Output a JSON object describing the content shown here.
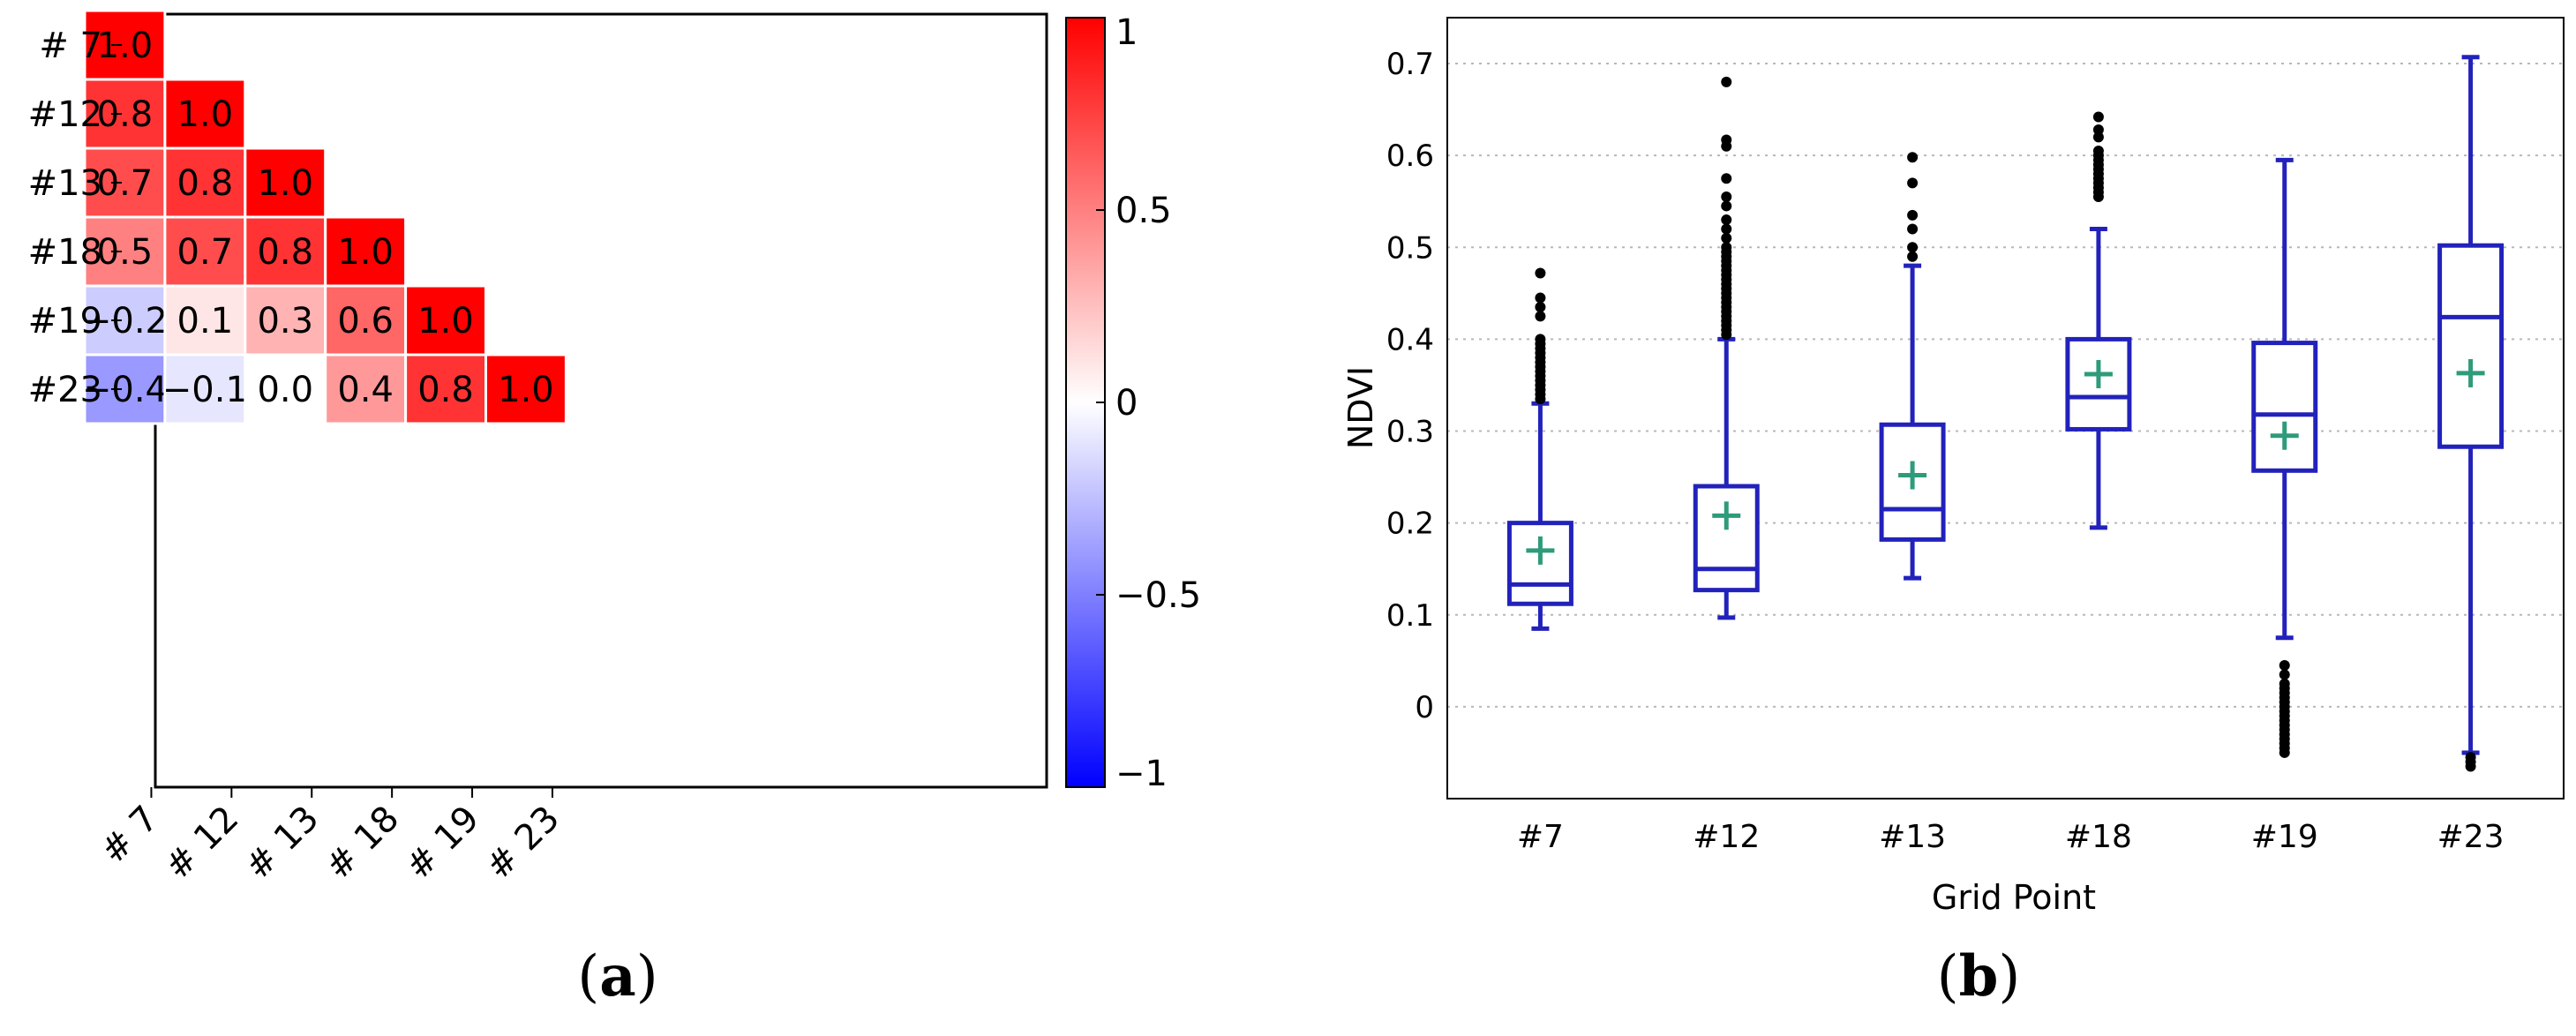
{
  "chart_data": [
    {
      "type": "heatmap",
      "panel_label": "a",
      "panel_label_open": "(",
      "panel_label_close": ")",
      "row_labels": [
        "# 7",
        "#12",
        "#13",
        "#18",
        "#19",
        "#23"
      ],
      "col_labels": [
        "# 7",
        "# 12",
        "# 13",
        "# 18",
        "# 19",
        "# 23"
      ],
      "cells": [
        {
          "r": 0,
          "c": 0,
          "v": 1.0,
          "text": "1.0"
        },
        {
          "r": 1,
          "c": 0,
          "v": 0.8,
          "text": "0.8"
        },
        {
          "r": 1,
          "c": 1,
          "v": 1.0,
          "text": "1.0"
        },
        {
          "r": 2,
          "c": 0,
          "v": 0.7,
          "text": "0.7"
        },
        {
          "r": 2,
          "c": 1,
          "v": 0.8,
          "text": "0.8"
        },
        {
          "r": 2,
          "c": 2,
          "v": 1.0,
          "text": "1.0"
        },
        {
          "r": 3,
          "c": 0,
          "v": 0.5,
          "text": "0.5"
        },
        {
          "r": 3,
          "c": 1,
          "v": 0.7,
          "text": "0.7"
        },
        {
          "r": 3,
          "c": 2,
          "v": 0.8,
          "text": "0.8"
        },
        {
          "r": 3,
          "c": 3,
          "v": 1.0,
          "text": "1.0"
        },
        {
          "r": 4,
          "c": 0,
          "v": -0.2,
          "text": "−0.2"
        },
        {
          "r": 4,
          "c": 1,
          "v": 0.1,
          "text": "0.1"
        },
        {
          "r": 4,
          "c": 2,
          "v": 0.3,
          "text": "0.3"
        },
        {
          "r": 4,
          "c": 3,
          "v": 0.6,
          "text": "0.6"
        },
        {
          "r": 4,
          "c": 4,
          "v": 1.0,
          "text": "1.0"
        },
        {
          "r": 5,
          "c": 0,
          "v": -0.4,
          "text": "−0.4"
        },
        {
          "r": 5,
          "c": 1,
          "v": -0.1,
          "text": "−0.1"
        },
        {
          "r": 5,
          "c": 2,
          "v": 0.0,
          "text": "0.0"
        },
        {
          "r": 5,
          "c": 3,
          "v": 0.4,
          "text": "0.4"
        },
        {
          "r": 5,
          "c": 4,
          "v": 0.8,
          "text": "0.8"
        },
        {
          "r": 5,
          "c": 5,
          "v": 1.0,
          "text": "1.0"
        }
      ],
      "colorbar": {
        "range": [
          -1,
          1
        ],
        "ticks": [
          1,
          0.5,
          0,
          -0.5,
          -1
        ],
        "tick_labels": [
          "1",
          "0.5",
          "0",
          "−0.5",
          "−1"
        ],
        "colors": {
          "positive": "#ff0000",
          "neutral": "#ffffff",
          "negative": "#0000ff"
        }
      }
    },
    {
      "type": "box",
      "panel_label": "b",
      "panel_label_open": "(",
      "panel_label_close": ")",
      "xlabel": "Grid Point",
      "ylabel": "NDVI",
      "ylim": [
        -0.1,
        0.75
      ],
      "y_ticks": [
        0,
        0.1,
        0.2,
        0.3,
        0.4,
        0.5,
        0.6,
        0.7
      ],
      "y_tick_labels": [
        "0",
        "0.1",
        "0.2",
        "0.3",
        "0.4",
        "0.5",
        "0.6",
        "0.7"
      ],
      "grid": true,
      "colors": {
        "box": "#2222bb",
        "mean_marker": "#2e9b7a",
        "outlier": "#000000"
      },
      "categories": [
        "#7",
        "#12",
        "#13",
        "#18",
        "#19",
        "#23"
      ],
      "boxes": [
        {
          "name": "#7",
          "whisker_low": 0.085,
          "q1": 0.112,
          "median": 0.133,
          "q3": 0.2,
          "whisker_high": 0.33,
          "mean": 0.17,
          "outliers": [
            0.335,
            0.34,
            0.345,
            0.35,
            0.355,
            0.36,
            0.365,
            0.37,
            0.375,
            0.38,
            0.385,
            0.39,
            0.395,
            0.4,
            0.425,
            0.435,
            0.445,
            0.472
          ]
        },
        {
          "name": "#12",
          "whisker_low": 0.097,
          "q1": 0.127,
          "median": 0.15,
          "q3": 0.24,
          "whisker_high": 0.4,
          "mean": 0.208,
          "outliers": [
            0.405,
            0.41,
            0.415,
            0.42,
            0.425,
            0.43,
            0.435,
            0.44,
            0.445,
            0.45,
            0.455,
            0.46,
            0.465,
            0.47,
            0.475,
            0.48,
            0.485,
            0.49,
            0.495,
            0.5,
            0.51,
            0.52,
            0.53,
            0.545,
            0.555,
            0.575,
            0.61,
            0.617,
            0.68
          ]
        },
        {
          "name": "#13",
          "whisker_low": 0.14,
          "q1": 0.182,
          "median": 0.215,
          "q3": 0.307,
          "whisker_high": 0.48,
          "mean": 0.252,
          "outliers": [
            0.49,
            0.5,
            0.52,
            0.535,
            0.57,
            0.598
          ]
        },
        {
          "name": "#18",
          "whisker_low": 0.195,
          "q1": 0.302,
          "median": 0.337,
          "q3": 0.4,
          "whisker_high": 0.52,
          "mean": 0.362,
          "outliers": [
            0.555,
            0.56,
            0.565,
            0.57,
            0.575,
            0.58,
            0.585,
            0.59,
            0.595,
            0.6,
            0.605,
            0.62,
            0.628,
            0.642
          ]
        },
        {
          "name": "#19",
          "whisker_low": 0.075,
          "q1": 0.257,
          "median": 0.318,
          "q3": 0.396,
          "whisker_high": 0.595,
          "mean": 0.295,
          "outliers": [
            0.045,
            0.035,
            0.025,
            0.02,
            0.015,
            0.01,
            0.005,
            0.0,
            -0.005,
            -0.01,
            -0.015,
            -0.02,
            -0.025,
            -0.03,
            -0.035,
            -0.04,
            -0.045,
            -0.05
          ]
        },
        {
          "name": "#23",
          "whisker_low": -0.05,
          "q1": 0.283,
          "median": 0.424,
          "q3": 0.502,
          "whisker_high": 0.707,
          "mean": 0.363,
          "outliers": [
            -0.055,
            -0.06,
            -0.065
          ]
        }
      ]
    }
  ]
}
